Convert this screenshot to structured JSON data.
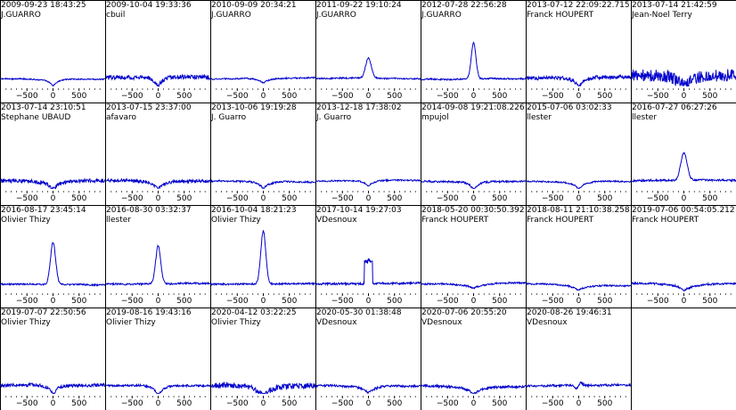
{
  "figure": {
    "colors": {
      "background": "#ffffff",
      "frame": "#000000",
      "line": "#0000cc"
    }
  },
  "chart_data": [
    {
      "type": "line",
      "title": "2009-09-23 18:43:25",
      "subtitle": "J.GUARRO",
      "xticks": [
        -500,
        0,
        500
      ],
      "profile": {
        "kind": "absorption",
        "depth": 0.3,
        "width": 80,
        "noise": 0.04,
        "baseline": 0.28
      }
    },
    {
      "type": "line",
      "title": "2009-10-04 19:33:36",
      "subtitle": "cbuil",
      "xticks": [
        -500,
        0,
        500
      ],
      "profile": {
        "kind": "absorption",
        "depth": 0.42,
        "width": 65,
        "noise": 0.15,
        "baseline": 0.32
      }
    },
    {
      "type": "line",
      "title": "2010-09-09 20:34:21",
      "subtitle": "J.GUARRO",
      "xticks": [
        -500,
        0,
        500
      ],
      "profile": {
        "kind": "absorption",
        "depth": 0.2,
        "width": 90,
        "noise": 0.05,
        "baseline": 0.27
      }
    },
    {
      "type": "line",
      "title": "2011-09-22 19:10:24",
      "subtitle": "J.GUARRO",
      "xticks": [
        -500,
        0,
        500
      ],
      "profile": {
        "kind": "emission",
        "depth": 0.75,
        "width": 55,
        "noise": 0.05,
        "baseline": 0.28
      }
    },
    {
      "type": "line",
      "title": "2012-07-28 22:56:28",
      "subtitle": "J.GUARRO",
      "xticks": [
        -500,
        0,
        500
      ],
      "profile": {
        "kind": "emission",
        "depth": 1.35,
        "width": 45,
        "noise": 0.05,
        "baseline": 0.26
      }
    },
    {
      "type": "line",
      "title": "2013-07-12 22:09:22.715",
      "subtitle": "Franck HOUPERT",
      "xticks": [
        -500,
        0,
        500
      ],
      "profile": {
        "kind": "absorption",
        "depth": 0.38,
        "width": 85,
        "noise": 0.14,
        "baseline": 0.3
      }
    },
    {
      "type": "line",
      "title": "2013-07-14 21:42:59",
      "subtitle": "Jean-Noel Terry",
      "xticks": [
        -500,
        0,
        500
      ],
      "profile": {
        "kind": "absorption",
        "depth": 0.45,
        "width": 120,
        "noise": 0.45,
        "baseline": 0.4
      }
    },
    {
      "type": "line",
      "title": "2013-07-14 23:10:51",
      "subtitle": "Stephane UBAUD",
      "xticks": [
        -500,
        0,
        500
      ],
      "profile": {
        "kind": "absorption",
        "depth": 0.35,
        "width": 95,
        "noise": 0.14,
        "baseline": 0.3
      }
    },
    {
      "type": "line",
      "title": "2013-07-15 23:37:00",
      "subtitle": "afavaro",
      "xticks": [
        -500,
        0,
        500
      ],
      "profile": {
        "kind": "absorption",
        "depth": 0.33,
        "width": 100,
        "noise": 0.11,
        "baseline": 0.3
      }
    },
    {
      "type": "line",
      "title": "2013-10-06 19:19:28",
      "subtitle": "J. Guarro",
      "xticks": [
        -500,
        0,
        500
      ],
      "profile": {
        "kind": "absorption",
        "depth": 0.28,
        "width": 90,
        "noise": 0.06,
        "baseline": 0.28
      }
    },
    {
      "type": "line",
      "title": "2013-12-18 17:38:02",
      "subtitle": "J. Guarro",
      "xticks": [
        -500,
        0,
        500
      ],
      "profile": {
        "kind": "absorption",
        "depth": 0.25,
        "width": 85,
        "noise": 0.05,
        "baseline": 0.28
      }
    },
    {
      "type": "line",
      "title": "2014-09-08 19:21:08.226",
      "subtitle": "mpujol",
      "xticks": [
        -500,
        0,
        500
      ],
      "profile": {
        "kind": "absorption",
        "depth": 0.35,
        "width": 70,
        "noise": 0.07,
        "baseline": 0.28
      }
    },
    {
      "type": "line",
      "title": "2015-07-06 03:02:33",
      "subtitle": "llester",
      "xticks": [
        -500,
        0,
        500
      ],
      "profile": {
        "kind": "absorption",
        "depth": 0.3,
        "width": 80,
        "noise": 0.05,
        "baseline": 0.28
      }
    },
    {
      "type": "line",
      "title": "2016-07-27 06:27:26",
      "subtitle": "llester",
      "xticks": [
        -500,
        0,
        500
      ],
      "profile": {
        "kind": "emission",
        "depth": 1.0,
        "width": 60,
        "noise": 0.07,
        "baseline": 0.3
      }
    },
    {
      "type": "line",
      "title": "2016-08-17 23:45:14",
      "subtitle": "Olivier Thizy",
      "xticks": [
        -500,
        0,
        500
      ],
      "profile": {
        "kind": "emission",
        "depth": 1.55,
        "width": 50,
        "noise": 0.06,
        "baseline": 0.27
      }
    },
    {
      "type": "line",
      "title": "2016-08-30 03:32:37",
      "subtitle": "llester",
      "xticks": [
        -500,
        0,
        500
      ],
      "profile": {
        "kind": "emission",
        "depth": 1.4,
        "width": 48,
        "noise": 0.06,
        "baseline": 0.27
      }
    },
    {
      "type": "line",
      "title": "2016-10-04 18:21:23",
      "subtitle": "Olivier Thizy",
      "xticks": [
        -500,
        0,
        500
      ],
      "profile": {
        "kind": "emission",
        "depth": 1.95,
        "width": 48,
        "noise": 0.06,
        "baseline": 0.27
      }
    },
    {
      "type": "line",
      "title": "2017-10-14 19:27:03",
      "subtitle": "VDesnoux",
      "xticks": [
        -500,
        0,
        500
      ],
      "profile": {
        "kind": "box",
        "depth": 0.95,
        "width": 60,
        "noise": 0.08,
        "baseline": 0.27
      }
    },
    {
      "type": "line",
      "title": "2018-05-20 00:30:50.392",
      "subtitle": "Franck HOUPERT",
      "xticks": [
        -500,
        0,
        500
      ],
      "profile": {
        "kind": "absorption",
        "depth": 0.2,
        "width": 140,
        "noise": 0.06,
        "baseline": 0.28
      }
    },
    {
      "type": "line",
      "title": "2018-08-11 21:10:38.258",
      "subtitle": "Franck HOUPERT",
      "xticks": [
        -500,
        0,
        500
      ],
      "profile": {
        "kind": "absorption",
        "depth": 0.22,
        "width": 140,
        "noise": 0.06,
        "baseline": 0.28
      }
    },
    {
      "type": "line",
      "title": "2019-07-06 00:54:05.212",
      "subtitle": "Franck HOUPERT",
      "xticks": [
        -500,
        0,
        500
      ],
      "profile": {
        "kind": "absorption",
        "depth": 0.28,
        "width": 120,
        "noise": 0.07,
        "baseline": 0.3
      }
    },
    {
      "type": "line",
      "title": "2019-07-07 22:50:56",
      "subtitle": "Olivier Thizy",
      "xticks": [
        -500,
        0,
        500
      ],
      "profile": {
        "kind": "absorption",
        "depth": 0.38,
        "width": 70,
        "noise": 0.12,
        "baseline": 0.32
      }
    },
    {
      "type": "line",
      "title": "2019-08-16 19:43:16",
      "subtitle": "Olivier Thizy",
      "xticks": [
        -500,
        0,
        500
      ],
      "profile": {
        "kind": "absorption",
        "depth": 0.42,
        "width": 65,
        "noise": 0.07,
        "baseline": 0.3
      }
    },
    {
      "type": "line",
      "title": "2020-04-12 03:22:25",
      "subtitle": "Olivier Thizy",
      "xticks": [
        -500,
        0,
        500
      ],
      "profile": {
        "kind": "absorption",
        "depth": 0.45,
        "width": 130,
        "noise": 0.2,
        "baseline": 0.32
      }
    },
    {
      "type": "line",
      "title": "2020-05-30 01:38:48",
      "subtitle": "VDesnoux",
      "xticks": [
        -500,
        0,
        500
      ],
      "profile": {
        "kind": "absorption",
        "depth": 0.3,
        "width": 120,
        "noise": 0.08,
        "baseline": 0.3
      }
    },
    {
      "type": "line",
      "title": "2020-07-06 20:55:20",
      "subtitle": "VDesnoux",
      "xticks": [
        -500,
        0,
        500
      ],
      "profile": {
        "kind": "absorption",
        "depth": 0.3,
        "width": 110,
        "noise": 0.09,
        "baseline": 0.3
      }
    },
    {
      "type": "line",
      "title": "2020-08-26 19:46:31",
      "subtitle": "VDesnoux",
      "xticks": [
        -500,
        0,
        500
      ],
      "profile": {
        "kind": "wiggle",
        "depth": 0.15,
        "width": 60,
        "noise": 0.08,
        "baseline": 0.3
      }
    }
  ]
}
